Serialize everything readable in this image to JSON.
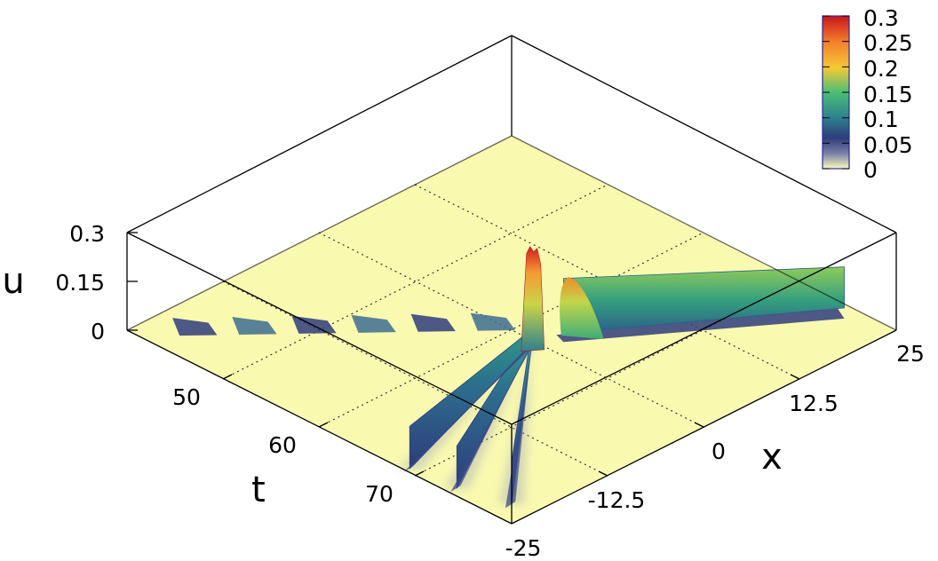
{
  "chart_data": {
    "type": "surface",
    "title": "",
    "xlabel": "x",
    "tlabel": "t",
    "zlabel": "u",
    "xlim": [
      -25,
      25
    ],
    "tlim": [
      40,
      80
    ],
    "zlim": [
      0,
      0.3
    ],
    "x_ticks": [
      "-25",
      "-12.5",
      "0",
      "12.5",
      "25"
    ],
    "t_ticks": [
      "50",
      "60",
      "70"
    ],
    "z_ticks": [
      "0",
      "0.15",
      "0.3"
    ],
    "colorbar": {
      "ticks": [
        "0",
        "0.05",
        "0.1",
        "0.15",
        "0.2",
        "0.25",
        "0.3"
      ],
      "range": [
        0,
        0.3
      ],
      "palette": [
        "#fbfbbd",
        "#2f3c7c",
        "#2c7f8e",
        "#4cbe74",
        "#f5c935",
        "#f47f2b",
        "#c8161c"
      ]
    },
    "floor_color": "#f9f9b0",
    "grid": true,
    "features": [
      {
        "name": "incoming soliton 1",
        "x_start": -24.5,
        "t_start": 51,
        "x_end": -0.5,
        "t_end": 57.5,
        "peak": 0.13
      },
      {
        "name": "incoming soliton 2",
        "x_start": -24,
        "t_start": 46.5,
        "x_end": -0.5,
        "t_end": 57.5,
        "peak": 0.13
      },
      {
        "name": "incoming soliton 3",
        "x_start": -22.5,
        "t_start": 42,
        "x_end": -0.5,
        "t_end": 57.5,
        "peak": 0.13
      },
      {
        "name": "interaction peak",
        "x": -0.5,
        "t": 57.5,
        "peak": 0.3
      },
      {
        "name": "outgoing soliton",
        "x_start": 3,
        "t_start": 57,
        "x_end": 24.5,
        "t_end": 45,
        "peak": 0.14
      },
      {
        "name": "dispersive tail",
        "x_start": 0,
        "t_start": 60,
        "x_end": -24,
        "t_end": 78,
        "peak": 0.08
      }
    ]
  }
}
